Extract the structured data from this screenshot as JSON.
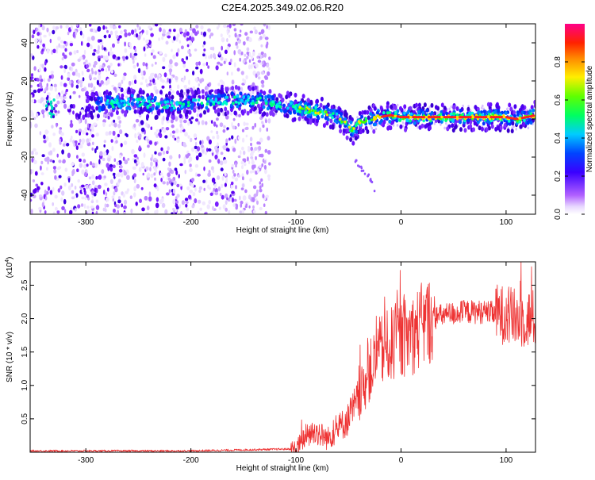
{
  "title": "C2E4.2025.349.02.06.R20",
  "chart_data": [
    {
      "type": "heatmap",
      "name": "spectrogram",
      "xlabel": "Height of straight line (km)",
      "ylabel": "Frequency (Hz)",
      "xlim": [
        -353,
        128
      ],
      "ylim": [
        -50,
        50
      ],
      "xticks": [
        -300,
        -200,
        -100,
        0,
        100
      ],
      "yticks": [
        -40,
        -20,
        0,
        20,
        40
      ],
      "track": {
        "x": [
          -338,
          -330,
          -300,
          -280,
          -260,
          -240,
          -220,
          -200,
          -180,
          -160,
          -140,
          -120,
          -100,
          -90,
          -80,
          -70,
          -60,
          -50,
          -45,
          -40,
          -30,
          -20,
          -10,
          0,
          20,
          40,
          60,
          80,
          100,
          110,
          120,
          128
        ],
        "freq": [
          6,
          6,
          7,
          8,
          9,
          8,
          7,
          8,
          9,
          10,
          10,
          8,
          6,
          5,
          4,
          3,
          1,
          -4,
          -6,
          -2,
          0,
          1,
          2,
          1,
          1,
          1,
          1,
          1,
          1,
          0,
          1,
          2
        ]
      },
      "whistler": {
        "x": [
          -45,
          -40,
          -30,
          -25
        ],
        "freq": [
          -20,
          -25,
          -30,
          -38
        ]
      },
      "colorbar": {
        "label": "Normalized spectral amplitude",
        "ticks": [
          "0.0",
          "0.2",
          "0.4",
          "0.6",
          "0.8"
        ],
        "range": [
          0,
          1
        ]
      }
    },
    {
      "type": "line",
      "name": "snr",
      "xlabel": "Height of straight line (km)",
      "ylabel": "SNR (10 * v/v)",
      "scale_label": "(x10",
      "scale_exp": "4",
      "scale_close": ")",
      "xlim": [
        -353,
        128
      ],
      "ylim": [
        0,
        2.85
      ],
      "xticks": [
        -300,
        -200,
        -100,
        0,
        100
      ],
      "yticks": [
        0.5,
        1.0,
        1.5,
        2.0,
        2.5
      ],
      "ytick_labels": [
        "0.5",
        "1.0",
        "1.5",
        "2.0",
        "2.5"
      ],
      "color": "#ee3333",
      "envelope": {
        "x": [
          -353,
          -200,
          -100,
          -90,
          -80,
          -70,
          -60,
          -50,
          -40,
          -30,
          -20,
          -10,
          0,
          10,
          20,
          30,
          40,
          60,
          80,
          100,
          110,
          120,
          128
        ],
        "y": [
          0.02,
          0.02,
          0.05,
          0.25,
          0.3,
          0.2,
          0.35,
          0.5,
          0.8,
          1.2,
          1.5,
          1.6,
          1.7,
          1.75,
          1.9,
          2.0,
          2.05,
          2.1,
          2.1,
          2.05,
          2.0,
          2.0,
          2.0
        ]
      }
    }
  ]
}
